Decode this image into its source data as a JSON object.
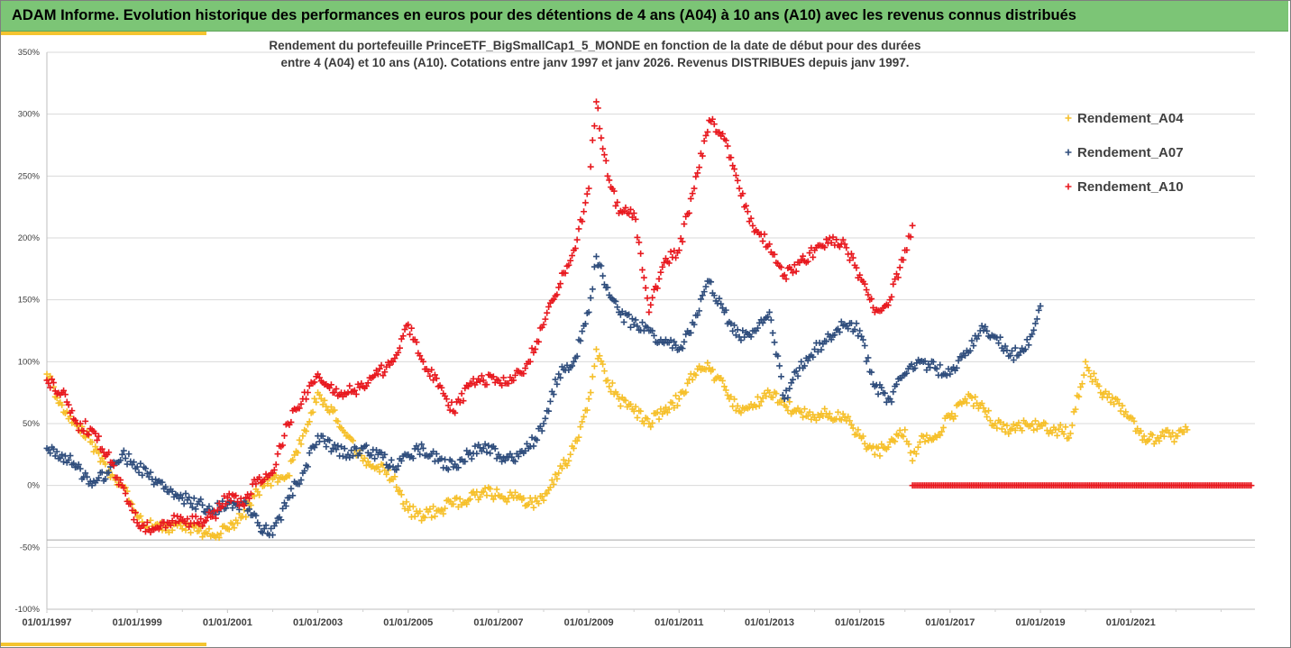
{
  "banner": {
    "title": "ADAM Informe. Evolution historique des performances en euros pour des détentions de 4 ans (A04) à 10 ans (A10) avec les revenus connus distribués"
  },
  "colors": {
    "banner_green": "#7cc576",
    "accent_yellow": "#f4c430",
    "series_A04": "#f6c02b",
    "series_A07": "#2f4d7c",
    "series_A10": "#e8191f"
  },
  "chart_data": {
    "type": "scatter",
    "title_line1": "Rendement du portefeuille PrinceETF_BigSmallCap1_5_MONDE  en fonction de la date de début pour des durées",
    "title_line2": "entre 4 (A04) et 10 ans (A10). Cotations entre janv 1997 et janv 2026. Revenus DISTRIBUES depuis janv 1997.",
    "xlabel": "",
    "ylabel": "",
    "x_ticks": [
      "01/01/1997",
      "01/01/1999",
      "01/01/2001",
      "01/01/2003",
      "01/01/2005",
      "01/01/2007",
      "01/01/2009",
      "01/01/2011",
      "01/01/2013",
      "01/01/2015",
      "01/01/2017",
      "01/01/2019",
      "01/01/2021"
    ],
    "y_ticks": [
      "-100%",
      "-50%",
      "0%",
      "50%",
      "100%",
      "150%",
      "200%",
      "250%",
      "300%",
      "350%"
    ],
    "xlim": [
      "1997-01-01",
      "2023-10-01"
    ],
    "ylim": [
      -100,
      350
    ],
    "reference_line_y": -44,
    "grid": "horizontal",
    "legend_position": "right",
    "marker": "+",
    "series": [
      {
        "name": "Rendement_A04",
        "points": [
          [
            "1997-01",
            90
          ],
          [
            "1997-05",
            65
          ],
          [
            "1997-09",
            48
          ],
          [
            "1998-01",
            35
          ],
          [
            "1998-05",
            10
          ],
          [
            "1998-09",
            0
          ],
          [
            "1999-01",
            -25
          ],
          [
            "1999-05",
            -33
          ],
          [
            "1999-09",
            -33
          ],
          [
            "2000-01",
            -35
          ],
          [
            "2000-05",
            -37
          ],
          [
            "2000-09",
            -40
          ],
          [
            "2001-01",
            -35
          ],
          [
            "2001-05",
            -25
          ],
          [
            "2001-09",
            -5
          ],
          [
            "2002-01",
            5
          ],
          [
            "2002-05",
            8
          ],
          [
            "2002-09",
            40
          ],
          [
            "2003-01",
            75
          ],
          [
            "2003-05",
            60
          ],
          [
            "2003-09",
            40
          ],
          [
            "2004-01",
            20
          ],
          [
            "2004-05",
            15
          ],
          [
            "2004-09",
            5
          ],
          [
            "2005-01",
            -20
          ],
          [
            "2005-05",
            -25
          ],
          [
            "2005-09",
            -20
          ],
          [
            "2006-01",
            -15
          ],
          [
            "2006-05",
            -12
          ],
          [
            "2006-09",
            -5
          ],
          [
            "2007-01",
            -8
          ],
          [
            "2007-05",
            -10
          ],
          [
            "2007-09",
            -15
          ],
          [
            "2008-01",
            -12
          ],
          [
            "2008-05",
            10
          ],
          [
            "2008-09",
            30
          ],
          [
            "2009-01",
            70
          ],
          [
            "2009-03",
            110
          ],
          [
            "2009-06",
            85
          ],
          [
            "2009-09",
            70
          ],
          [
            "2010-01",
            60
          ],
          [
            "2010-05",
            50
          ],
          [
            "2010-09",
            60
          ],
          [
            "2011-01",
            70
          ],
          [
            "2011-05",
            90
          ],
          [
            "2011-09",
            95
          ],
          [
            "2012-01",
            80
          ],
          [
            "2012-05",
            60
          ],
          [
            "2012-09",
            65
          ],
          [
            "2013-01",
            75
          ],
          [
            "2013-05",
            65
          ],
          [
            "2013-09",
            60
          ],
          [
            "2014-01",
            55
          ],
          [
            "2014-05",
            58
          ],
          [
            "2014-09",
            55
          ],
          [
            "2015-01",
            40
          ],
          [
            "2015-05",
            25
          ],
          [
            "2015-09",
            35
          ],
          [
            "2016-01",
            45
          ],
          [
            "2016-03",
            20
          ],
          [
            "2016-05",
            35
          ],
          [
            "2016-09",
            40
          ],
          [
            "2017-01",
            55
          ],
          [
            "2017-05",
            70
          ],
          [
            "2017-09",
            65
          ],
          [
            "2018-01",
            50
          ],
          [
            "2018-05",
            45
          ],
          [
            "2018-09",
            50
          ],
          [
            "2019-01",
            48
          ],
          [
            "2019-05",
            45
          ],
          [
            "2019-09",
            42
          ],
          [
            "2020-01",
            100
          ],
          [
            "2020-05",
            75
          ],
          [
            "2020-09",
            70
          ],
          [
            "2021-01",
            55
          ],
          [
            "2021-05",
            35
          ],
          [
            "2021-09",
            40
          ],
          [
            "2022-01",
            40
          ],
          [
            "2022-04",
            45
          ]
        ]
      },
      {
        "name": "Rendement_A07",
        "points": [
          [
            "1997-01",
            30
          ],
          [
            "1997-05",
            25
          ],
          [
            "1997-09",
            15
          ],
          [
            "1998-01",
            0
          ],
          [
            "1998-05",
            10
          ],
          [
            "1998-09",
            25
          ],
          [
            "1999-01",
            15
          ],
          [
            "1999-05",
            5
          ],
          [
            "1999-09",
            -5
          ],
          [
            "2000-01",
            -10
          ],
          [
            "2000-05",
            -15
          ],
          [
            "2000-09",
            -20
          ],
          [
            "2001-01",
            -15
          ],
          [
            "2001-05",
            -15
          ],
          [
            "2001-09",
            -30
          ],
          [
            "2002-01",
            -40
          ],
          [
            "2002-05",
            -10
          ],
          [
            "2002-09",
            10
          ],
          [
            "2003-01",
            40
          ],
          [
            "2003-05",
            30
          ],
          [
            "2003-09",
            25
          ],
          [
            "2004-01",
            30
          ],
          [
            "2004-05",
            25
          ],
          [
            "2004-09",
            15
          ],
          [
            "2005-01",
            25
          ],
          [
            "2005-05",
            30
          ],
          [
            "2005-09",
            20
          ],
          [
            "2006-01",
            15
          ],
          [
            "2006-05",
            25
          ],
          [
            "2006-09",
            30
          ],
          [
            "2007-01",
            25
          ],
          [
            "2007-05",
            20
          ],
          [
            "2007-09",
            30
          ],
          [
            "2008-01",
            50
          ],
          [
            "2008-05",
            90
          ],
          [
            "2008-09",
            100
          ],
          [
            "2009-01",
            140
          ],
          [
            "2009-03",
            185
          ],
          [
            "2009-06",
            160
          ],
          [
            "2009-09",
            140
          ],
          [
            "2010-01",
            130
          ],
          [
            "2010-05",
            125
          ],
          [
            "2010-09",
            115
          ],
          [
            "2011-01",
            110
          ],
          [
            "2011-05",
            130
          ],
          [
            "2011-09",
            165
          ],
          [
            "2012-01",
            140
          ],
          [
            "2012-05",
            120
          ],
          [
            "2012-09",
            125
          ],
          [
            "2013-01",
            140
          ],
          [
            "2013-05",
            70
          ],
          [
            "2013-09",
            95
          ],
          [
            "2014-01",
            110
          ],
          [
            "2014-05",
            120
          ],
          [
            "2014-09",
            130
          ],
          [
            "2015-01",
            125
          ],
          [
            "2015-05",
            80
          ],
          [
            "2015-09",
            70
          ],
          [
            "2016-01",
            90
          ],
          [
            "2016-05",
            100
          ],
          [
            "2016-09",
            95
          ],
          [
            "2017-01",
            90
          ],
          [
            "2017-05",
            105
          ],
          [
            "2017-09",
            125
          ],
          [
            "2018-01",
            120
          ],
          [
            "2018-05",
            105
          ],
          [
            "2018-09",
            110
          ],
          [
            "2019-01",
            145
          ]
        ]
      },
      {
        "name": "Rendement_A10",
        "points": [
          [
            "1997-01",
            85
          ],
          [
            "1997-05",
            75
          ],
          [
            "1997-09",
            50
          ],
          [
            "1998-01",
            45
          ],
          [
            "1998-05",
            25
          ],
          [
            "1998-09",
            0
          ],
          [
            "1999-01",
            -30
          ],
          [
            "1999-05",
            -35
          ],
          [
            "1999-09",
            -30
          ],
          [
            "2000-01",
            -28
          ],
          [
            "2000-05",
            -30
          ],
          [
            "2000-09",
            -25
          ],
          [
            "2001-01",
            -10
          ],
          [
            "2001-05",
            -15
          ],
          [
            "2001-09",
            5
          ],
          [
            "2002-01",
            10
          ],
          [
            "2002-05",
            50
          ],
          [
            "2002-09",
            70
          ],
          [
            "2003-01",
            90
          ],
          [
            "2003-05",
            75
          ],
          [
            "2003-09",
            75
          ],
          [
            "2004-01",
            80
          ],
          [
            "2004-05",
            90
          ],
          [
            "2004-09",
            100
          ],
          [
            "2005-01",
            130
          ],
          [
            "2005-05",
            100
          ],
          [
            "2005-09",
            80
          ],
          [
            "2006-01",
            60
          ],
          [
            "2006-05",
            80
          ],
          [
            "2006-09",
            85
          ],
          [
            "2007-01",
            85
          ],
          [
            "2007-05",
            85
          ],
          [
            "2007-09",
            100
          ],
          [
            "2008-01",
            130
          ],
          [
            "2008-05",
            160
          ],
          [
            "2008-09",
            190
          ],
          [
            "2009-01",
            240
          ],
          [
            "2009-03",
            310
          ],
          [
            "2009-06",
            250
          ],
          [
            "2009-09",
            220
          ],
          [
            "2010-01",
            220
          ],
          [
            "2010-05",
            140
          ],
          [
            "2010-09",
            180
          ],
          [
            "2011-01",
            190
          ],
          [
            "2011-05",
            240
          ],
          [
            "2011-09",
            295
          ],
          [
            "2012-01",
            280
          ],
          [
            "2012-05",
            240
          ],
          [
            "2012-09",
            205
          ],
          [
            "2013-01",
            195
          ],
          [
            "2013-05",
            170
          ],
          [
            "2013-09",
            180
          ],
          [
            "2014-01",
            190
          ],
          [
            "2014-05",
            200
          ],
          [
            "2014-09",
            195
          ],
          [
            "2015-01",
            170
          ],
          [
            "2015-05",
            140
          ],
          [
            "2015-09",
            150
          ],
          [
            "2016-01",
            190
          ],
          [
            "2016-03",
            210
          ],
          [
            "2016-03",
            0
          ],
          [
            "2016-09",
            0
          ],
          [
            "2017-03",
            0
          ],
          [
            "2017-09",
            0
          ],
          [
            "2018-03",
            0
          ],
          [
            "2018-09",
            0
          ],
          [
            "2019-03",
            0
          ],
          [
            "2019-09",
            0
          ],
          [
            "2020-03",
            0
          ],
          [
            "2020-09",
            0
          ],
          [
            "2021-03",
            0
          ],
          [
            "2021-09",
            0
          ],
          [
            "2022-03",
            0
          ],
          [
            "2022-09",
            0
          ],
          [
            "2023-03",
            0
          ],
          [
            "2023-09",
            0
          ]
        ]
      }
    ]
  }
}
